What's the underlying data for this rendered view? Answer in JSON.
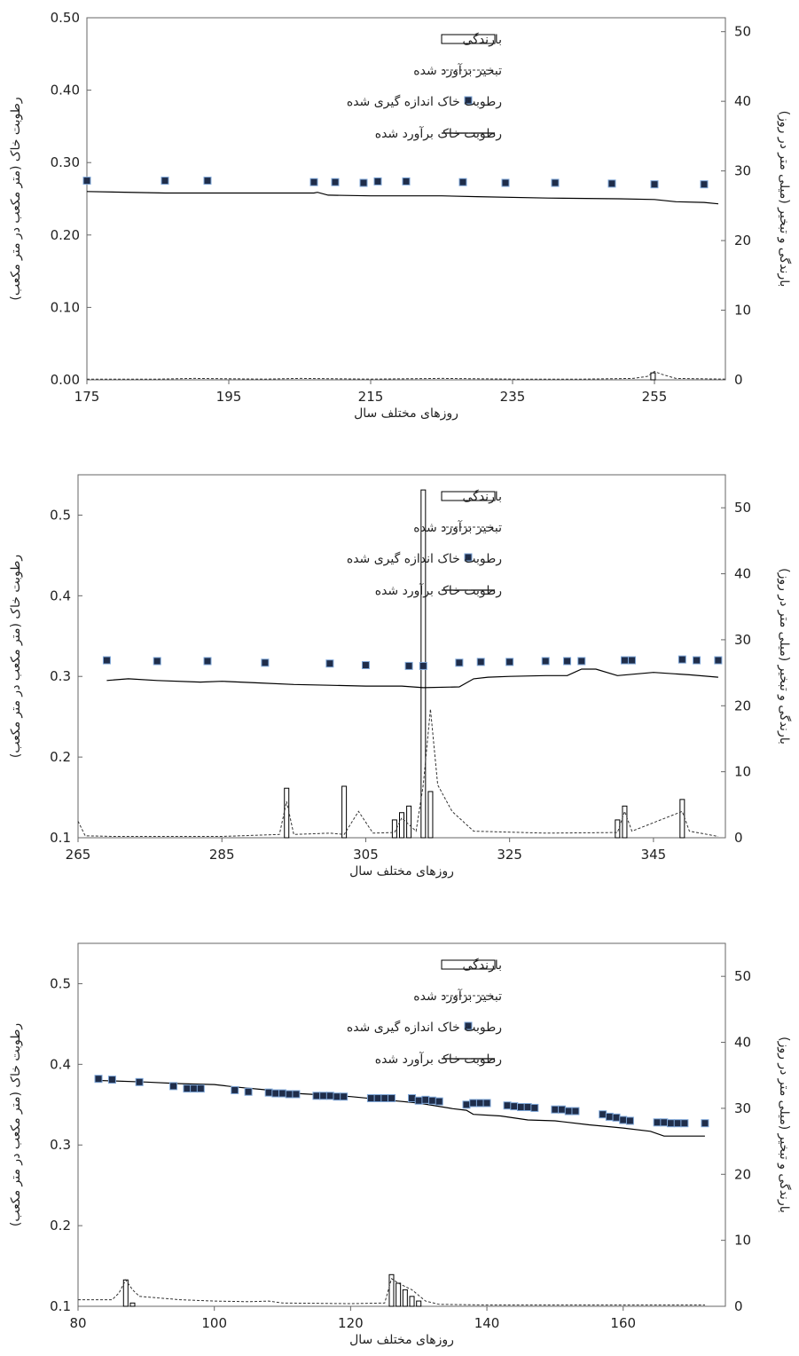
{
  "chart_data": [
    {
      "type": "combo",
      "xlabel": "روزهای مختلف سال",
      "ylabel_left": "رطوبت خاک (متر مکعب در متر مکعب)",
      "ylabel_right": "بارندگی و تبخیر (میلی متر در روز)",
      "xlim": [
        175,
        265
      ],
      "ylim_left": [
        0,
        0.5
      ],
      "ylim_right": [
        0,
        52
      ],
      "x_ticks": [
        "175",
        "195",
        "215",
        "235",
        "255"
      ],
      "x_tick_values": [
        175,
        195,
        215,
        235,
        255
      ],
      "y_left_ticks": [
        "0.00",
        "0.10",
        "0.20",
        "0.30",
        "0.40",
        "0.50"
      ],
      "y_left_tick_values": [
        0,
        0.1,
        0.2,
        0.3,
        0.4,
        0.5
      ],
      "y_right_ticks": [
        "0",
        "10",
        "20",
        "30",
        "40",
        "50"
      ],
      "y_right_tick_values": [
        0,
        10,
        20,
        30,
        40,
        50
      ],
      "legend": {
        "placement": "top-right",
        "rain": "بارندگی",
        "evap": "تبخیر برآورد شده",
        "measured": "رطوبت خاک اندازه گیری شده",
        "estimated": "رطوبت خاک برآورد شده"
      },
      "rainfall": [
        [
          254.8,
          1.0
        ]
      ],
      "evaporation": [
        [
          175,
          0.1
        ],
        [
          185,
          0.1
        ],
        [
          190,
          0.2
        ],
        [
          200,
          0.1
        ],
        [
          205,
          0.2
        ],
        [
          215,
          0.1
        ],
        [
          225,
          0.2
        ],
        [
          235,
          0.1
        ],
        [
          245,
          0.1
        ],
        [
          252,
          0.2
        ],
        [
          254,
          0.5
        ],
        [
          255,
          1.2
        ],
        [
          256,
          0.8
        ],
        [
          258,
          0.2
        ],
        [
          265,
          0.1
        ]
      ],
      "measured_moisture": [
        [
          175,
          0.275
        ],
        [
          186,
          0.275
        ],
        [
          192,
          0.275
        ],
        [
          207,
          0.273
        ],
        [
          210,
          0.273
        ],
        [
          214,
          0.272
        ],
        [
          216,
          0.274
        ],
        [
          220,
          0.274
        ],
        [
          228,
          0.273
        ],
        [
          234,
          0.272
        ],
        [
          241,
          0.272
        ],
        [
          249,
          0.271
        ],
        [
          255,
          0.27
        ],
        [
          262,
          0.27
        ]
      ],
      "estimated_moisture": [
        [
          175,
          0.26
        ],
        [
          186,
          0.258
        ],
        [
          192,
          0.258
        ],
        [
          207,
          0.258
        ],
        [
          207.5,
          0.259
        ],
        [
          209,
          0.255
        ],
        [
          215,
          0.254
        ],
        [
          225,
          0.254
        ],
        [
          230,
          0.253
        ],
        [
          240,
          0.251
        ],
        [
          250,
          0.25
        ],
        [
          255,
          0.249
        ],
        [
          258,
          0.246
        ],
        [
          262,
          0.245
        ],
        [
          264,
          0.243
        ]
      ]
    },
    {
      "type": "combo",
      "xlabel": "روزهای مختلف سال",
      "ylabel_left": "رطوبت خاک (متر مکعب در متر مکعب)",
      "ylabel_right": "بارندگی و تبخیر (میلی متر در روز)",
      "xlim": [
        265,
        355
      ],
      "ylim_left": [
        0.1,
        0.55
      ],
      "ylim_right": [
        0,
        55
      ],
      "x_ticks": [
        "265",
        "285",
        "305",
        "325",
        "345"
      ],
      "x_tick_values": [
        265,
        285,
        305,
        325,
        345
      ],
      "y_left_ticks": [
        "0.1",
        "0.2",
        "0.3",
        "0.4",
        "0.5"
      ],
      "y_left_tick_values": [
        0.1,
        0.2,
        0.3,
        0.4,
        0.5
      ],
      "y_right_ticks": [
        "0",
        "10",
        "20",
        "30",
        "40",
        "50"
      ],
      "y_right_tick_values": [
        0,
        10,
        20,
        30,
        40,
        50
      ],
      "legend": {
        "placement": "top-right",
        "rain": "بارندگی",
        "evap": "تبخیر برآورد شده",
        "measured": "رطوبت خاک اندازه گیری شده",
        "estimated": "رطوبت خاک برآورد شده"
      },
      "rainfall": [
        [
          294,
          7.5
        ],
        [
          302,
          7.8
        ],
        [
          309,
          2.7
        ],
        [
          310,
          3.8
        ],
        [
          311,
          4.8
        ],
        [
          313,
          52.7
        ],
        [
          314,
          7.0
        ],
        [
          340,
          2.7
        ],
        [
          341,
          4.8
        ],
        [
          349,
          5.8
        ]
      ],
      "evaporation": [
        [
          265,
          2.5
        ],
        [
          266,
          0.3
        ],
        [
          270,
          0.2
        ],
        [
          285,
          0.2
        ],
        [
          293,
          0.5
        ],
        [
          294,
          5.5
        ],
        [
          295,
          0.5
        ],
        [
          300,
          0.7
        ],
        [
          302,
          0.5
        ],
        [
          304,
          4.0
        ],
        [
          306,
          0.7
        ],
        [
          309,
          0.8
        ],
        [
          310,
          3.0
        ],
        [
          312,
          1.0
        ],
        [
          313,
          8.0
        ],
        [
          314,
          19.5
        ],
        [
          315,
          8.0
        ],
        [
          317,
          4.0
        ],
        [
          318,
          3.0
        ],
        [
          320,
          1.0
        ],
        [
          330,
          0.7
        ],
        [
          340,
          0.8
        ],
        [
          341,
          4.0
        ],
        [
          342,
          1.0
        ],
        [
          349,
          4.0
        ],
        [
          350,
          1.0
        ],
        [
          354,
          0.2
        ]
      ],
      "measured_moisture": [
        [
          269,
          0.32
        ],
        [
          276,
          0.319
        ],
        [
          283,
          0.319
        ],
        [
          291,
          0.317
        ],
        [
          300,
          0.316
        ],
        [
          305,
          0.314
        ],
        [
          311,
          0.313
        ],
        [
          313,
          0.313
        ],
        [
          318,
          0.317
        ],
        [
          321,
          0.318
        ],
        [
          325,
          0.318
        ],
        [
          330,
          0.319
        ],
        [
          333,
          0.319
        ],
        [
          335,
          0.319
        ],
        [
          341,
          0.32
        ],
        [
          342,
          0.32
        ],
        [
          349,
          0.321
        ],
        [
          351,
          0.32
        ],
        [
          354,
          0.32
        ]
      ],
      "estimated_moisture": [
        [
          269,
          0.295
        ],
        [
          272,
          0.297
        ],
        [
          276,
          0.295
        ],
        [
          282,
          0.293
        ],
        [
          285,
          0.294
        ],
        [
          290,
          0.292
        ],
        [
          295,
          0.29
        ],
        [
          300,
          0.289
        ],
        [
          305,
          0.288
        ],
        [
          310,
          0.288
        ],
        [
          313,
          0.286
        ],
        [
          318,
          0.287
        ],
        [
          320,
          0.297
        ],
        [
          322,
          0.299
        ],
        [
          325,
          0.3
        ],
        [
          330,
          0.301
        ],
        [
          333,
          0.301
        ],
        [
          335,
          0.309
        ],
        [
          337,
          0.309
        ],
        [
          340,
          0.301
        ],
        [
          345,
          0.305
        ],
        [
          350,
          0.302
        ],
        [
          354,
          0.299
        ]
      ]
    },
    {
      "type": "combo",
      "xlabel": "روزهای مختلف سال",
      "ylabel_left": "رطوبت خاک (متر مکعب در متر مکعب)",
      "ylabel_right": "بارندگی و تبخیر (میلی متر در روز)",
      "xlim": [
        80,
        175
      ],
      "ylim_left": [
        0.1,
        0.55
      ],
      "ylim_right": [
        0,
        55
      ],
      "x_ticks": [
        "80",
        "100",
        "120",
        "140",
        "160"
      ],
      "x_tick_values": [
        80,
        100,
        120,
        140,
        160
      ],
      "y_left_ticks": [
        "0.1",
        "0.2",
        "0.3",
        "0.4",
        "0.5"
      ],
      "y_left_tick_values": [
        0.1,
        0.2,
        0.3,
        0.4,
        0.5
      ],
      "y_right_ticks": [
        "0",
        "10",
        "20",
        "30",
        "40",
        "50"
      ],
      "y_right_tick_values": [
        0,
        10,
        20,
        30,
        40,
        50
      ],
      "legend": {
        "placement": "top-right",
        "rain": "بارندگی",
        "evap": "تبخیر برآورد شده",
        "measured": "رطوبت خاک اندازه گیری شده",
        "estimated": "رطوبت خاک برآورد شده"
      },
      "rainfall": [
        [
          87,
          4.0
        ],
        [
          88,
          0.5
        ],
        [
          126,
          4.8
        ],
        [
          127,
          3.5
        ],
        [
          128,
          2.5
        ],
        [
          129,
          1.5
        ],
        [
          130,
          0.8
        ]
      ],
      "evaporation": [
        [
          80,
          1.0
        ],
        [
          85,
          1.0
        ],
        [
          86,
          2.0
        ],
        [
          87,
          4.0
        ],
        [
          88,
          2.5
        ],
        [
          89,
          1.5
        ],
        [
          95,
          1.0
        ],
        [
          100,
          0.8
        ],
        [
          105,
          0.7
        ],
        [
          108,
          0.8
        ],
        [
          110,
          0.5
        ],
        [
          120,
          0.4
        ],
        [
          125,
          0.5
        ],
        [
          126,
          4.2
        ],
        [
          127,
          3.5
        ],
        [
          129,
          2.5
        ],
        [
          131,
          0.8
        ],
        [
          133,
          0.3
        ],
        [
          140,
          0.2
        ],
        [
          160,
          0.2
        ],
        [
          172,
          0.2
        ]
      ],
      "measured_moisture": [
        [
          83,
          0.382
        ],
        [
          85,
          0.381
        ],
        [
          89,
          0.378
        ],
        [
          94,
          0.373
        ],
        [
          96,
          0.37
        ],
        [
          97,
          0.37
        ],
        [
          98,
          0.37
        ],
        [
          103,
          0.368
        ],
        [
          105,
          0.366
        ],
        [
          108,
          0.365
        ],
        [
          109,
          0.364
        ],
        [
          110,
          0.364
        ],
        [
          111,
          0.363
        ],
        [
          112,
          0.363
        ],
        [
          115,
          0.361
        ],
        [
          116,
          0.361
        ],
        [
          117,
          0.361
        ],
        [
          118,
          0.36
        ],
        [
          119,
          0.36
        ],
        [
          123,
          0.358
        ],
        [
          124,
          0.358
        ],
        [
          125,
          0.358
        ],
        [
          126,
          0.358
        ],
        [
          129,
          0.358
        ],
        [
          130,
          0.355
        ],
        [
          131,
          0.356
        ],
        [
          132,
          0.355
        ],
        [
          133,
          0.354
        ],
        [
          137,
          0.35
        ],
        [
          138,
          0.352
        ],
        [
          139,
          0.352
        ],
        [
          140,
          0.352
        ],
        [
          143,
          0.349
        ],
        [
          144,
          0.348
        ],
        [
          145,
          0.347
        ],
        [
          146,
          0.347
        ],
        [
          147,
          0.346
        ],
        [
          150,
          0.344
        ],
        [
          151,
          0.344
        ],
        [
          152,
          0.342
        ],
        [
          153,
          0.342
        ],
        [
          157,
          0.338
        ],
        [
          158,
          0.335
        ],
        [
          159,
          0.334
        ],
        [
          160,
          0.331
        ],
        [
          161,
          0.33
        ],
        [
          165,
          0.328
        ],
        [
          166,
          0.328
        ],
        [
          167,
          0.327
        ],
        [
          168,
          0.327
        ],
        [
          169,
          0.327
        ],
        [
          172,
          0.327
        ]
      ],
      "estimated_moisture": [
        [
          83,
          0.38
        ],
        [
          90,
          0.378
        ],
        [
          95,
          0.376
        ],
        [
          100,
          0.375
        ],
        [
          103,
          0.372
        ],
        [
          108,
          0.368
        ],
        [
          112,
          0.364
        ],
        [
          116,
          0.362
        ],
        [
          120,
          0.36
        ],
        [
          125,
          0.356
        ],
        [
          130,
          0.352
        ],
        [
          135,
          0.345
        ],
        [
          137,
          0.343
        ],
        [
          138,
          0.338
        ],
        [
          142,
          0.336
        ],
        [
          146,
          0.331
        ],
        [
          150,
          0.33
        ],
        [
          155,
          0.325
        ],
        [
          160,
          0.321
        ],
        [
          164,
          0.317
        ],
        [
          166,
          0.311
        ],
        [
          172,
          0.311
        ]
      ]
    }
  ]
}
